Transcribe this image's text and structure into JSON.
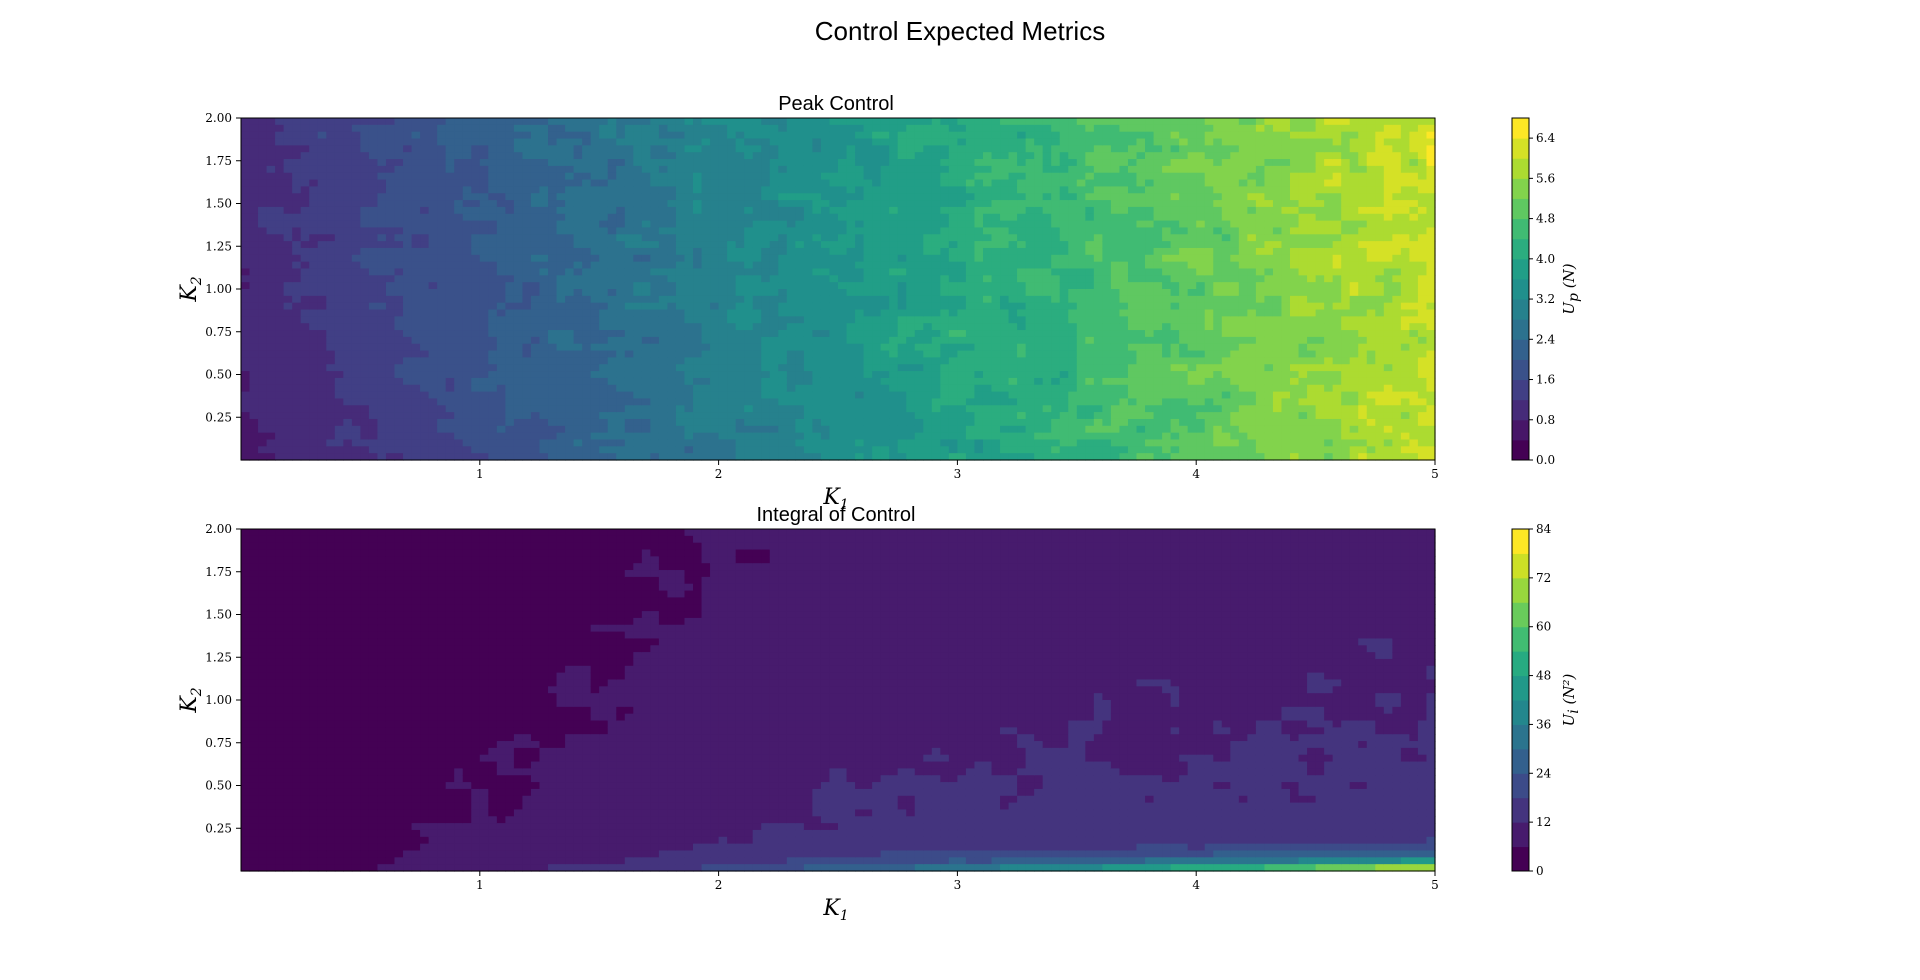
{
  "figure": {
    "title": "Control Expected Metrics"
  },
  "chart_data": [
    {
      "type": "heatmap",
      "title": "Peak Control",
      "xlabel": "K",
      "xlabel_sub": "1",
      "ylabel": "K",
      "ylabel_sub": "2",
      "xlim": [
        0,
        5
      ],
      "ylim": [
        0,
        2
      ],
      "xticks": [
        "1",
        "2",
        "3",
        "4",
        "5"
      ],
      "yticks": [
        "0.25",
        "0.50",
        "0.75",
        "1.00",
        "1.25",
        "1.50",
        "1.75",
        "2.00"
      ],
      "colorbar": {
        "label": "U",
        "label_sub": "p",
        "label_rest": " (N)",
        "ticks": [
          "0.0",
          "0.8",
          "1.6",
          "2.4",
          "3.2",
          "4.0",
          "4.8",
          "5.6",
          "6.4"
        ],
        "levels": [
          0.0,
          0.4,
          0.8,
          1.2,
          1.6,
          2.0,
          2.4,
          2.8,
          3.2,
          3.6,
          4.0,
          4.4,
          4.8,
          5.2,
          5.6,
          6.0,
          6.4,
          6.8
        ],
        "range": [
          0,
          6.8
        ]
      },
      "colormap": "viridis",
      "model": "peak"
    },
    {
      "type": "heatmap",
      "title": "Integral of Control",
      "xlabel": "K",
      "xlabel_sub": "1",
      "ylabel": "K",
      "ylabel_sub": "2",
      "xlim": [
        0,
        5
      ],
      "ylim": [
        0,
        2
      ],
      "xticks": [
        "1",
        "2",
        "3",
        "4",
        "5"
      ],
      "yticks": [
        "0.25",
        "0.50",
        "0.75",
        "1.00",
        "1.25",
        "1.50",
        "1.75",
        "2.00"
      ],
      "colorbar": {
        "label": "U",
        "label_sub": "i",
        "label_rest": " (N²)",
        "ticks": [
          "0",
          "12",
          "24",
          "36",
          "48",
          "60",
          "72",
          "84"
        ],
        "levels": [
          0,
          6,
          12,
          18,
          24,
          30,
          36,
          42,
          48,
          54,
          60,
          66,
          72,
          78,
          84
        ],
        "range": [
          0,
          84
        ]
      },
      "colormap": "viridis",
      "model": "integral"
    }
  ]
}
